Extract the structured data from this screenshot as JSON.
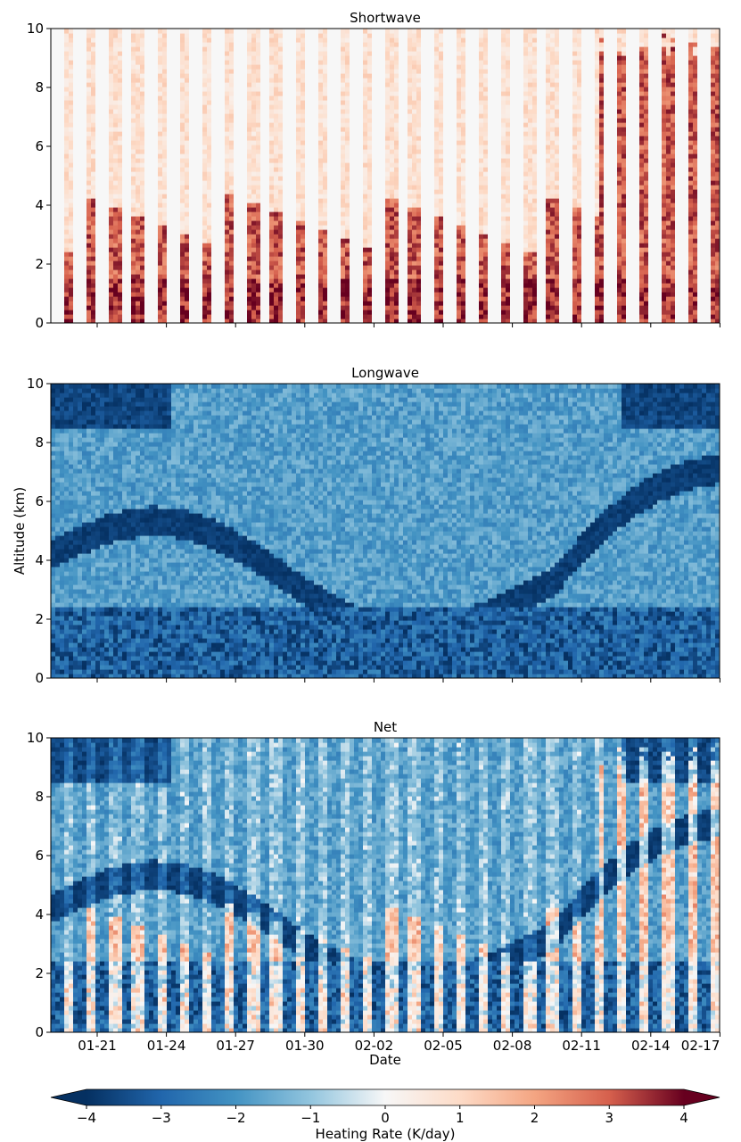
{
  "figure": {
    "xlabel": "Date",
    "ylabel": "Altitude (km)",
    "colorbar_label": "Heating Rate (K/day)"
  },
  "colors": {
    "strong_cool": "#053061",
    "mid_cool": "#2166ac",
    "light_cool": "#92c5de",
    "neutral": "#f7f7f7",
    "light_warm": "#f4a582",
    "mid_warm": "#d6604d",
    "strong_warm": "#67001f"
  },
  "chart_data": [
    {
      "type": "heatmap",
      "title": "Shortwave",
      "xlabel": "",
      "ylabel": "",
      "ylim": [
        0,
        10
      ],
      "yticks": [
        0,
        2,
        4,
        6,
        8,
        10
      ],
      "x_tick_labels": [],
      "pattern": "diurnal stripes of positive heating, strongest below ~3 km, extending to ~9 km after 02-12",
      "value_range": [
        0,
        4
      ]
    },
    {
      "type": "heatmap",
      "title": "Longwave",
      "xlabel": "",
      "ylabel": "Altitude (km)",
      "ylim": [
        0,
        10
      ],
      "yticks": [
        0,
        2,
        4,
        6,
        8,
        10
      ],
      "x_tick_labels": [],
      "pattern": "persistent cooling, strongest below ~3 km and along descending cloud-top layers",
      "value_range": [
        -4,
        0
      ]
    },
    {
      "type": "heatmap",
      "title": "Net",
      "xlabel": "Date",
      "ylabel": "",
      "ylim": [
        0,
        10
      ],
      "yticks": [
        0,
        2,
        4,
        6,
        8,
        10
      ],
      "x_tick_labels": [
        "01-21",
        "01-24",
        "01-27",
        "01-30",
        "02-02",
        "02-05",
        "02-08",
        "02-11",
        "02-14",
        "02-17"
      ],
      "pattern": "longwave cooling interrupted by daytime shortwave stripes, weak warming near 1-3 km",
      "value_range": [
        -4,
        2
      ]
    }
  ],
  "colorbar": {
    "label": "Heating Rate (K/day)",
    "ticks": [
      -4,
      -3,
      -2,
      -1,
      0,
      1,
      2,
      3,
      4
    ],
    "tick_labels": [
      "−4",
      "−3",
      "−2",
      "−1",
      "0",
      "1",
      "2",
      "3",
      "4"
    ],
    "range": [
      -4,
      4
    ],
    "extend": "both"
  }
}
